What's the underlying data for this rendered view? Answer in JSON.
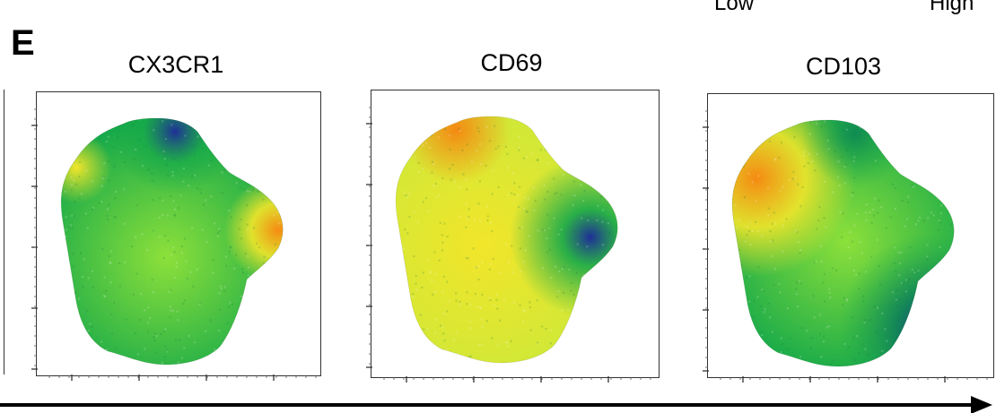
{
  "legend": {
    "low": "Low",
    "high": "High"
  },
  "panel_letter": "E",
  "colors": {
    "low": "#1f2f98",
    "mid_low": "#16a94a",
    "mid": "#8de03a",
    "mid_high": "#f2e62a",
    "high": "#f58a12",
    "frame": "#333333",
    "arrow": "#000000"
  },
  "chart_data": [
    {
      "type": "heatmap",
      "title": "CX3CR1",
      "description_regions": [
        {
          "region": "bulk",
          "level": "mid"
        },
        {
          "region": "right lobe",
          "level": "high"
        },
        {
          "region": "top center",
          "level": "low"
        },
        {
          "region": "top-left edge",
          "level": "mid_high"
        }
      ]
    },
    {
      "type": "heatmap",
      "title": "CD69",
      "description_regions": [
        {
          "region": "bulk",
          "level": "mid_high"
        },
        {
          "region": "right lobe",
          "level": "low"
        },
        {
          "region": "top-left",
          "level": "high"
        }
      ]
    },
    {
      "type": "heatmap",
      "title": "CD103",
      "description_regions": [
        {
          "region": "upper-left",
          "level": "high"
        },
        {
          "region": "center",
          "level": "mid"
        },
        {
          "region": "lower-right",
          "level": "low"
        },
        {
          "region": "top center",
          "level": "mid_low"
        }
      ]
    }
  ]
}
